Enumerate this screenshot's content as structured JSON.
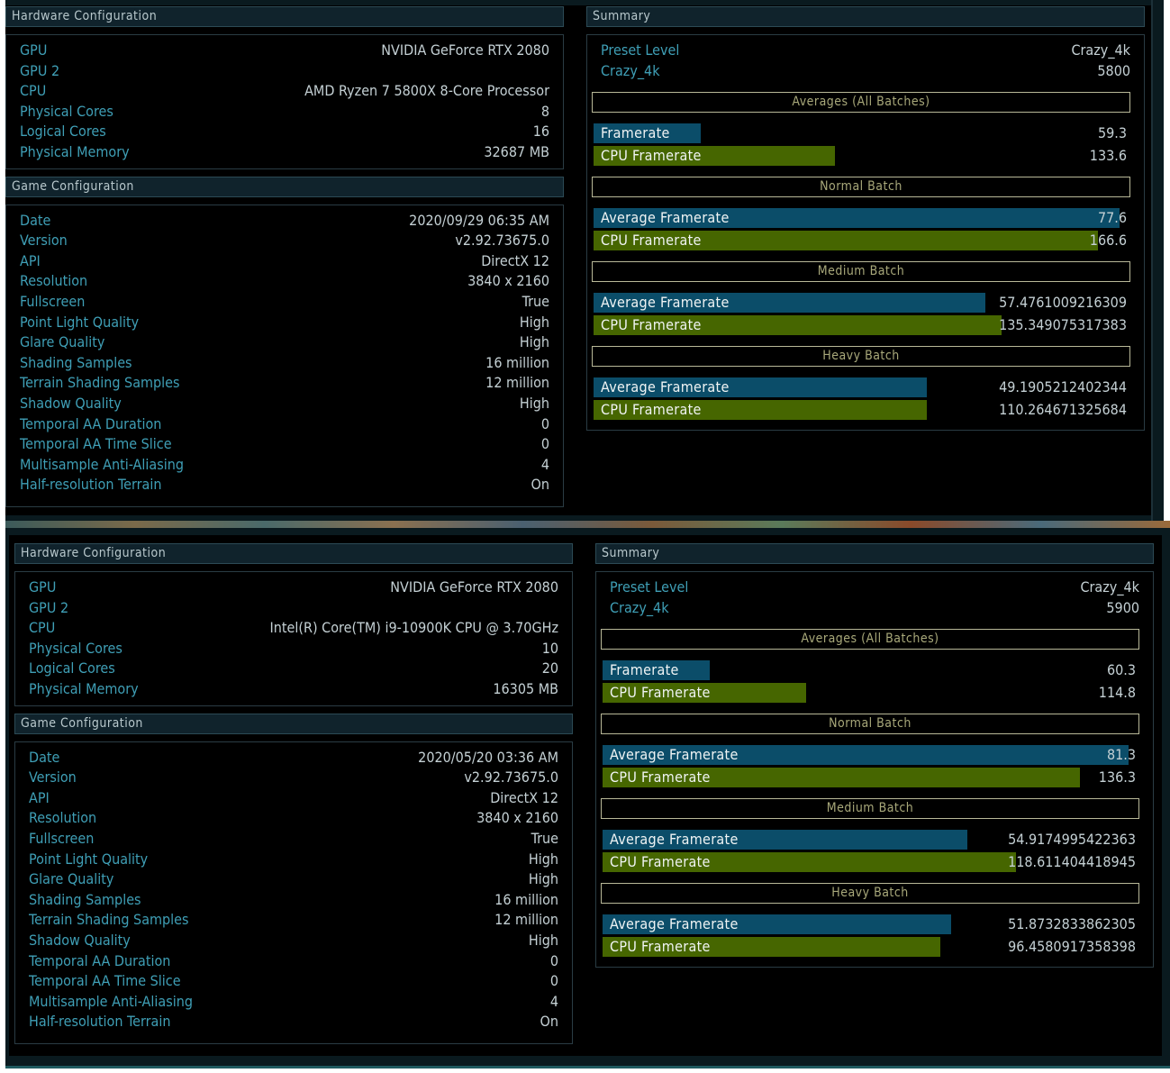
{
  "runs": [
    {
      "hardware": {
        "title": "Hardware Configuration",
        "rows": [
          {
            "label": "GPU",
            "value": "NVIDIA GeForce RTX 2080"
          },
          {
            "label": "GPU 2",
            "value": ""
          },
          {
            "label": "CPU",
            "value": "AMD Ryzen 7 5800X 8-Core Processor"
          },
          {
            "label": "Physical Cores",
            "value": "8"
          },
          {
            "label": "Logical Cores",
            "value": "16"
          },
          {
            "label": "Physical Memory",
            "value": "32687 MB"
          }
        ]
      },
      "game": {
        "title": "Game Configuration",
        "rows": [
          {
            "label": "Date",
            "value": "2020/09/29 06:35 AM"
          },
          {
            "label": "Version",
            "value": "v2.92.73675.0"
          },
          {
            "label": "API",
            "value": "DirectX 12"
          },
          {
            "label": "Resolution",
            "value": "3840 x 2160"
          },
          {
            "label": "Fullscreen",
            "value": "True"
          },
          {
            "label": "Point Light Quality",
            "value": "High"
          },
          {
            "label": "Glare Quality",
            "value": "High"
          },
          {
            "label": "Shading Samples",
            "value": "16 million"
          },
          {
            "label": "Terrain Shading Samples",
            "value": "12 million"
          },
          {
            "label": "Shadow Quality",
            "value": "High"
          },
          {
            "label": "Temporal AA Duration",
            "value": "0"
          },
          {
            "label": "Temporal AA Time Slice",
            "value": "0"
          },
          {
            "label": "Multisample Anti-Aliasing",
            "value": "4"
          },
          {
            "label": "Half-resolution Terrain",
            "value": "On"
          }
        ]
      },
      "summary": {
        "title": "Summary",
        "rows": [
          {
            "label": "Preset Level",
            "value": "Crazy_4k"
          },
          {
            "label": "Crazy_4k",
            "value": "5800"
          }
        ],
        "sections": [
          {
            "title": "Averages (All Batches)",
            "bars": [
              {
                "label": "Framerate",
                "value": "59.3",
                "fill": 0.2,
                "color": "blue"
              },
              {
                "label": "CPU Framerate",
                "value": "133.6",
                "fill": 0.45,
                "color": "green"
              }
            ]
          },
          {
            "title": "Normal Batch",
            "bars": [
              {
                "label": "Average Framerate",
                "value": "77.6",
                "fill": 0.98,
                "color": "blue"
              },
              {
                "label": "CPU Framerate",
                "value": "166.6",
                "fill": 0.94,
                "color": "green"
              }
            ]
          },
          {
            "title": "Medium Batch",
            "bars": [
              {
                "label": "Average Framerate",
                "value": "57.4761009216309",
                "fill": 0.73,
                "color": "blue"
              },
              {
                "label": "CPU Framerate",
                "value": "135.349075317383",
                "fill": 0.76,
                "color": "green"
              }
            ]
          },
          {
            "title": "Heavy Batch",
            "bars": [
              {
                "label": "Average Framerate",
                "value": "49.1905212402344",
                "fill": 0.62,
                "color": "blue"
              },
              {
                "label": "CPU Framerate",
                "value": "110.264671325684",
                "fill": 0.62,
                "color": "green"
              }
            ]
          }
        ]
      }
    },
    {
      "hardware": {
        "title": "Hardware Configuration",
        "rows": [
          {
            "label": "GPU",
            "value": "NVIDIA GeForce RTX 2080"
          },
          {
            "label": "GPU 2",
            "value": ""
          },
          {
            "label": "CPU",
            "value": "Intel(R) Core(TM) i9-10900K CPU @ 3.70GHz"
          },
          {
            "label": "Physical Cores",
            "value": "10"
          },
          {
            "label": "Logical Cores",
            "value": "20"
          },
          {
            "label": "Physical Memory",
            "value": "16305 MB"
          }
        ]
      },
      "game": {
        "title": "Game Configuration",
        "rows": [
          {
            "label": "Date",
            "value": "2020/05/20 03:36 AM"
          },
          {
            "label": "Version",
            "value": "v2.92.73675.0"
          },
          {
            "label": "API",
            "value": "DirectX 12"
          },
          {
            "label": "Resolution",
            "value": "3840 x 2160"
          },
          {
            "label": "Fullscreen",
            "value": "True"
          },
          {
            "label": "Point Light Quality",
            "value": "High"
          },
          {
            "label": "Glare Quality",
            "value": "High"
          },
          {
            "label": "Shading Samples",
            "value": "16 million"
          },
          {
            "label": "Terrain Shading Samples",
            "value": "12 million"
          },
          {
            "label": "Shadow Quality",
            "value": "High"
          },
          {
            "label": "Temporal AA Duration",
            "value": "0"
          },
          {
            "label": "Temporal AA Time Slice",
            "value": "0"
          },
          {
            "label": "Multisample Anti-Aliasing",
            "value": "4"
          },
          {
            "label": "Half-resolution Terrain",
            "value": "On"
          }
        ]
      },
      "summary": {
        "title": "Summary",
        "rows": [
          {
            "label": "Preset Level",
            "value": "Crazy_4k"
          },
          {
            "label": "Crazy_4k",
            "value": "5900"
          }
        ],
        "sections": [
          {
            "title": "Averages (All Batches)",
            "bars": [
              {
                "label": "Framerate",
                "value": "60.3",
                "fill": 0.2,
                "color": "blue"
              },
              {
                "label": "CPU Framerate",
                "value": "114.8",
                "fill": 0.38,
                "color": "green"
              }
            ]
          },
          {
            "title": "Normal Batch",
            "bars": [
              {
                "label": "Average Framerate",
                "value": "81.3",
                "fill": 0.98,
                "color": "blue"
              },
              {
                "label": "CPU Framerate",
                "value": "136.3",
                "fill": 0.89,
                "color": "green"
              }
            ]
          },
          {
            "title": "Medium Batch",
            "bars": [
              {
                "label": "Average Framerate",
                "value": "54.9174995422363",
                "fill": 0.68,
                "color": "blue"
              },
              {
                "label": "CPU Framerate",
                "value": "118.611404418945",
                "fill": 0.77,
                "color": "green"
              }
            ]
          },
          {
            "title": "Heavy Batch",
            "bars": [
              {
                "label": "Average Framerate",
                "value": "51.8732833862305",
                "fill": 0.65,
                "color": "blue"
              },
              {
                "label": "CPU Framerate",
                "value": "96.4580917358398",
                "fill": 0.63,
                "color": "green"
              }
            ]
          }
        ]
      }
    }
  ],
  "colors": {
    "bar_blue": "#0b4d69",
    "bar_green": "#466600",
    "label": "#3f9fb6",
    "section_border": "#b8b898"
  }
}
